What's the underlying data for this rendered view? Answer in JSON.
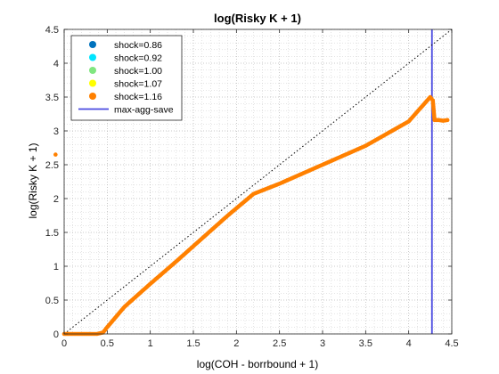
{
  "chart_data": {
    "type": "scatter",
    "title": "log(Risky K + 1)",
    "xlabel": "log(COH - borrbound + 1)",
    "ylabel": "log(Risky K + 1)",
    "xlim": [
      0,
      4.5
    ],
    "ylim": [
      0,
      4.5
    ],
    "xticks": [
      "0",
      "0.5",
      "1",
      "1.5",
      "2",
      "2.5",
      "3",
      "3.5",
      "4",
      "4.5"
    ],
    "yticks": [
      "0",
      "0.5",
      "1",
      "1.5",
      "2",
      "2.5",
      "3",
      "3.5",
      "4",
      "4.5"
    ],
    "grid": true,
    "minor_grid": true,
    "legend_position": "top-left",
    "series": [
      {
        "name": "shock=0.86",
        "color": "#0072bd",
        "points": []
      },
      {
        "name": "shock=0.92",
        "color": "#00e5ff",
        "points": []
      },
      {
        "name": "shock=1.00",
        "color": "#80e680",
        "points": []
      },
      {
        "name": "shock=1.07",
        "color": "#ffff00",
        "points": []
      },
      {
        "name": "shock=1.16",
        "color": "#ff8000",
        "points": [
          [
            0,
            0
          ],
          [
            0.1,
            0
          ],
          [
            0.2,
            0
          ],
          [
            0.3,
            0
          ],
          [
            0.38,
            0
          ],
          [
            0.45,
            0.02
          ],
          [
            0.5,
            0.1
          ],
          [
            0.7,
            0.4
          ],
          [
            1.0,
            0.74
          ],
          [
            1.3,
            1.07
          ],
          [
            1.6,
            1.41
          ],
          [
            1.9,
            1.75
          ],
          [
            2.2,
            2.07
          ],
          [
            2.5,
            2.22
          ],
          [
            3.0,
            2.5
          ],
          [
            3.5,
            2.78
          ],
          [
            4.0,
            3.14
          ],
          [
            4.25,
            3.5
          ],
          [
            4.28,
            3.45
          ],
          [
            4.3,
            3.16
          ],
          [
            4.35,
            3.16
          ],
          [
            4.4,
            3.15
          ],
          [
            4.45,
            3.16
          ],
          [
            -0.1,
            2.65
          ]
        ]
      }
    ],
    "reference_lines": [
      {
        "name": "max-agg-save",
        "orientation": "vertical",
        "x": 4.27,
        "color": "#4a4ae0"
      },
      {
        "name": "",
        "type": "diagonal",
        "from": [
          0,
          0
        ],
        "to": [
          4.5,
          4.5
        ],
        "color": "#000000",
        "style": "dotted"
      }
    ]
  }
}
